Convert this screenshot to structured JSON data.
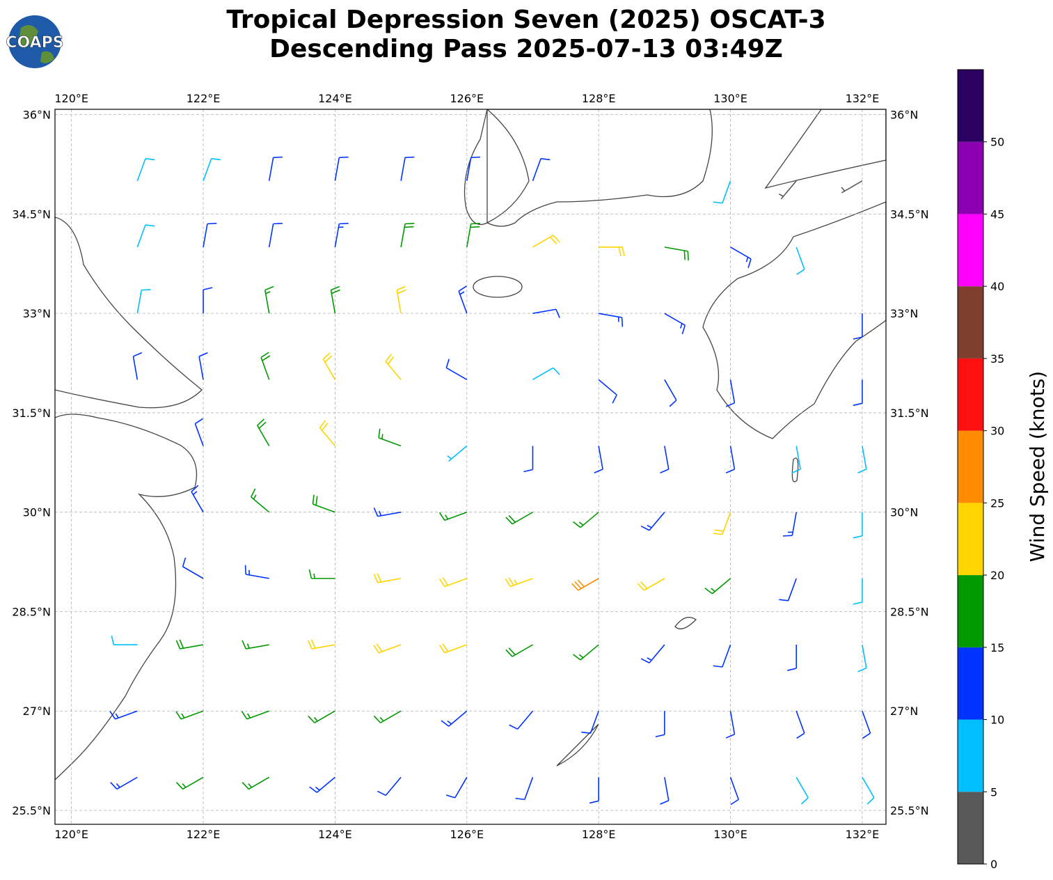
{
  "chart_data": {
    "type": "barbs",
    "title": "Tropical Depression Seven (2025) OSCAT-3",
    "subtitle": "Descending Pass 2025-07-13 03:49Z",
    "logo": "COAPS",
    "xlim": [
      119.75,
      132.36
    ],
    "ylim": [
      25.29,
      36.08
    ],
    "xticks": [
      {
        "value": 120,
        "label": "120°E"
      },
      {
        "value": 122,
        "label": "122°E"
      },
      {
        "value": 124,
        "label": "124°E"
      },
      {
        "value": 126,
        "label": "126°E"
      },
      {
        "value": 128,
        "label": "128°E"
      },
      {
        "value": 130,
        "label": "130°E"
      },
      {
        "value": 132,
        "label": "132°E"
      }
    ],
    "yticks": [
      {
        "value": 25.5,
        "label": "25.5°N"
      },
      {
        "value": 27,
        "label": "27°N"
      },
      {
        "value": 28.5,
        "label": "28.5°N"
      },
      {
        "value": 30,
        "label": "30°N"
      },
      {
        "value": 31.5,
        "label": "31.5°N"
      },
      {
        "value": 33,
        "label": "33°N"
      },
      {
        "value": 34.5,
        "label": "34.5°N"
      },
      {
        "value": 36,
        "label": "36°N"
      }
    ],
    "grid": true,
    "barbs": {
      "lon": [
        121,
        122,
        123,
        124,
        125,
        126,
        127,
        128,
        129,
        130,
        131,
        132
      ],
      "lat": [
        35,
        34,
        33,
        32,
        31,
        30,
        29,
        28,
        27,
        26
      ],
      "speed": [
        [
          8,
          8,
          12,
          12,
          12,
          12,
          10,
          null,
          null,
          8,
          4,
          4
        ],
        [
          8,
          10,
          12,
          14,
          18,
          18,
          22,
          20,
          18,
          14,
          8,
          null
        ],
        [
          8,
          12,
          16,
          18,
          22,
          14,
          12,
          14,
          14,
          null,
          null,
          12
        ],
        [
          10,
          12,
          18,
          20,
          20,
          10,
          8,
          12,
          12,
          10,
          null,
          12
        ],
        [
          null,
          12,
          18,
          20,
          16,
          6,
          10,
          12,
          12,
          10,
          8,
          8
        ],
        [
          null,
          14,
          16,
          18,
          14,
          16,
          18,
          16,
          14,
          20,
          14,
          8
        ],
        [
          null,
          10,
          14,
          16,
          22,
          22,
          24,
          28,
          20,
          16,
          12,
          8
        ],
        [
          8,
          18,
          16,
          20,
          20,
          22,
          18,
          16,
          14,
          12,
          12,
          8
        ],
        [
          14,
          16,
          16,
          16,
          16,
          14,
          12,
          12,
          10,
          10,
          10,
          10
        ],
        [
          14,
          16,
          16,
          14,
          12,
          12,
          12,
          10,
          10,
          10,
          8,
          8
        ]
      ],
      "direction": [
        [
          20,
          20,
          10,
          10,
          10,
          10,
          20,
          null,
          null,
          200,
          220,
          240
        ],
        [
          20,
          10,
          10,
          10,
          10,
          10,
          60,
          90,
          100,
          120,
          160,
          null
        ],
        [
          10,
          360,
          350,
          350,
          350,
          340,
          80,
          100,
          120,
          null,
          null,
          180
        ],
        [
          350,
          350,
          340,
          330,
          320,
          300,
          60,
          130,
          150,
          170,
          null,
          180
        ],
        [
          null,
          340,
          330,
          320,
          290,
          230,
          180,
          170,
          170,
          170,
          170,
          170
        ],
        [
          null,
          330,
          310,
          290,
          260,
          250,
          240,
          230,
          220,
          200,
          190,
          180
        ],
        [
          null,
          300,
          280,
          270,
          260,
          250,
          250,
          240,
          240,
          230,
          200,
          180
        ],
        [
          270,
          260,
          260,
          260,
          250,
          250,
          240,
          230,
          220,
          200,
          180,
          170
        ],
        [
          250,
          250,
          250,
          240,
          240,
          230,
          220,
          200,
          180,
          170,
          160,
          160
        ],
        [
          240,
          240,
          240,
          230,
          220,
          210,
          200,
          180,
          170,
          160,
          150,
          150
        ]
      ]
    },
    "colorbar": {
      "label": "Wind Speed (knots)",
      "bounds": [
        0,
        5,
        10,
        15,
        20,
        25,
        30,
        35,
        40,
        45,
        50,
        55
      ],
      "ticks": [
        0,
        5,
        10,
        15,
        20,
        25,
        30,
        35,
        40,
        45,
        50
      ],
      "colors": [
        "#595959",
        "#00bfff",
        "#0033ff",
        "#009900",
        "#ffd400",
        "#ff8c00",
        "#ff1010",
        "#7f3f2f",
        "#ff00ff",
        "#8b00b0",
        "#2a0060"
      ]
    }
  }
}
